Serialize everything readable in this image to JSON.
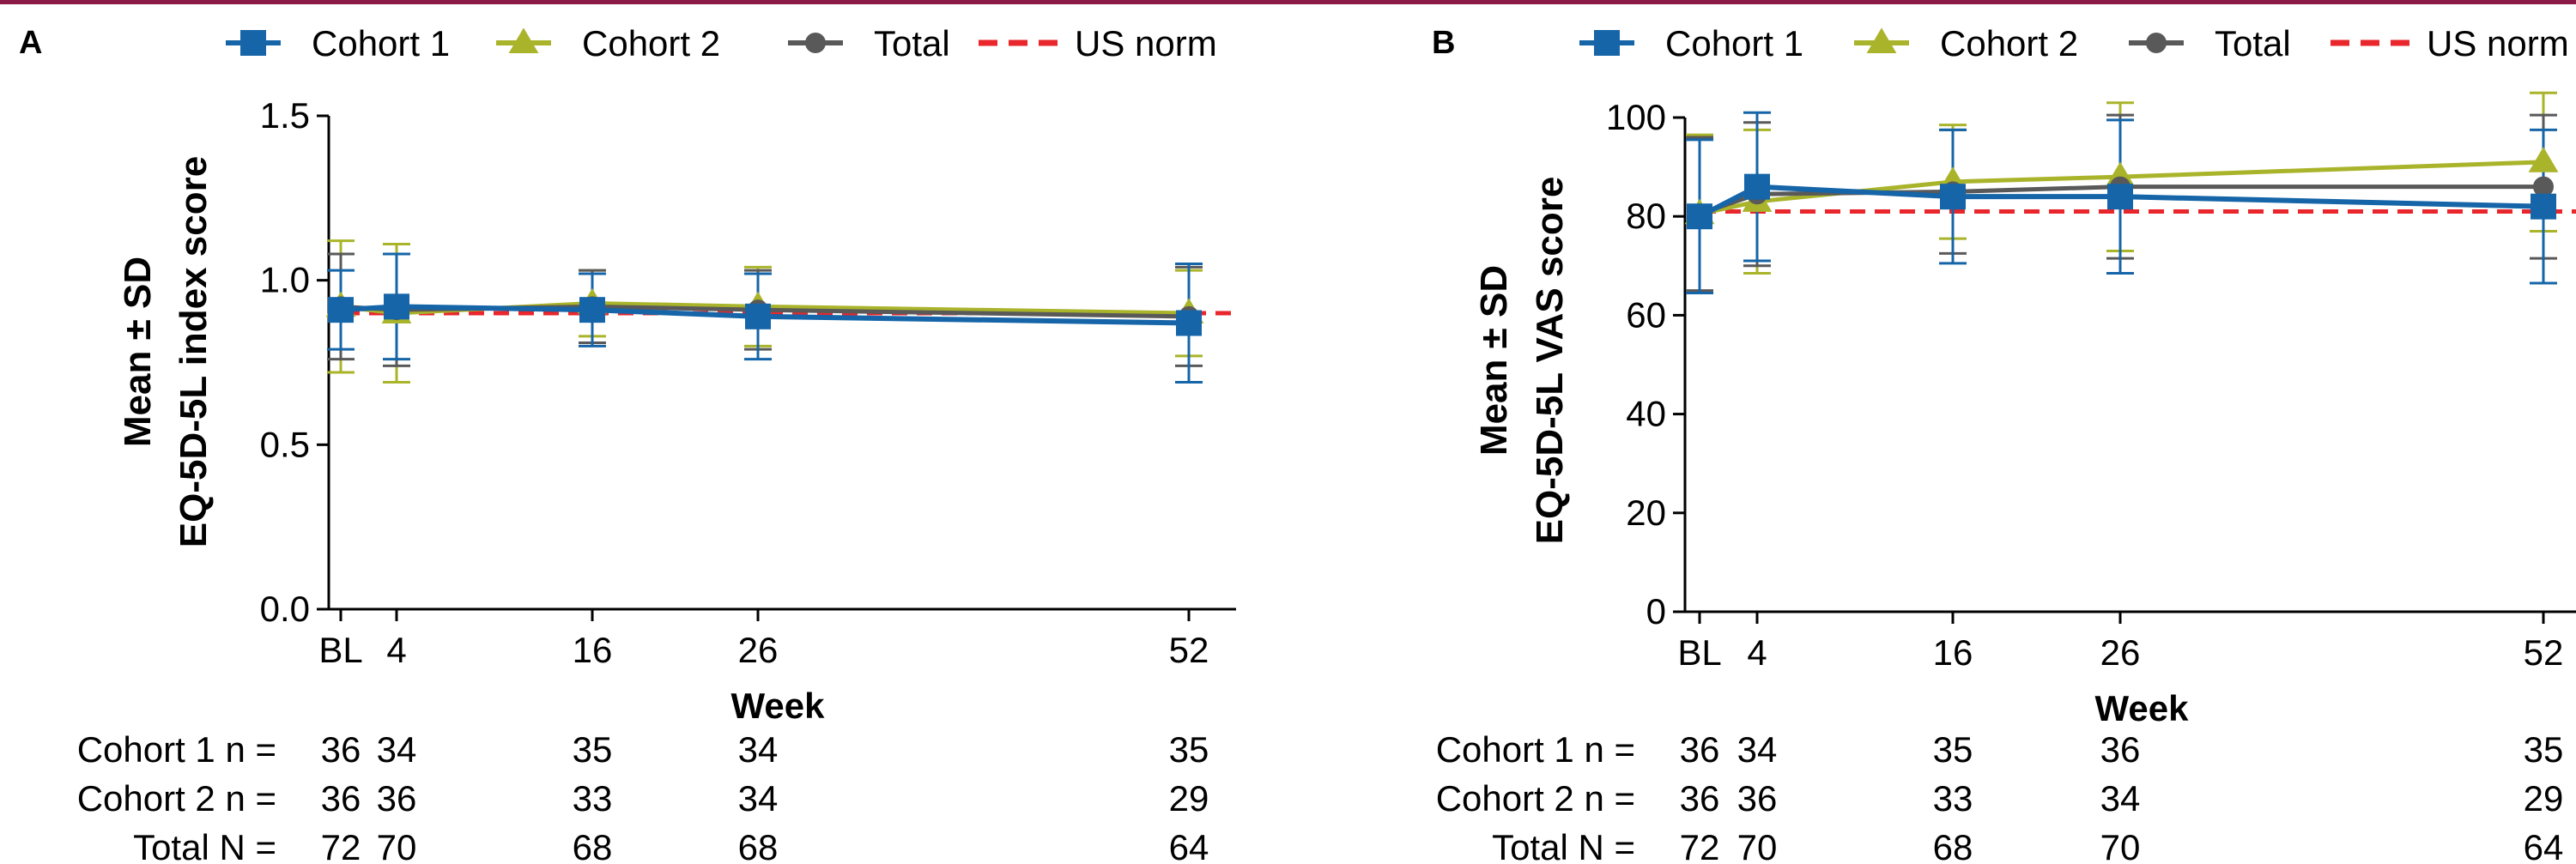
{
  "legend_items": [
    {
      "label": "Cohort 1",
      "color": "#1565a8",
      "marker": "square"
    },
    {
      "label": "Cohort 2",
      "color": "#a9b42a",
      "marker": "triangle"
    },
    {
      "label": "Total",
      "color": "#595959",
      "marker": "circle"
    },
    {
      "label": "US norm",
      "color": "#e8262b",
      "marker": "dashed-line"
    }
  ],
  "colors": {
    "cohort1": "#1565a8",
    "cohort2": "#a9b42a",
    "total": "#595959",
    "us_norm": "#e8262b"
  },
  "chart_data": [
    {
      "type": "line",
      "panel_label": "A",
      "ylabel_line1": "Mean ± SD",
      "ylabel_line2": "EQ-5D-5L index score",
      "xlabel": "Week",
      "x": [
        "BL",
        "4",
        "16",
        "26",
        "52"
      ],
      "x_weeks": [
        0,
        4,
        16,
        26,
        52
      ],
      "ylim": [
        0.0,
        1.5
      ],
      "yticks": [
        "0.0",
        "0.5",
        "1.0",
        "1.5"
      ],
      "us_norm": 0.9,
      "series": [
        {
          "name": "Cohort 2",
          "values": [
            0.92,
            0.9,
            0.93,
            0.92,
            0.9
          ],
          "sd": [
            0.2,
            0.21,
            0.1,
            0.12,
            0.13
          ]
        },
        {
          "name": "Total",
          "values": [
            0.92,
            0.91,
            0.92,
            0.91,
            0.89
          ],
          "sd": [
            0.16,
            0.17,
            0.11,
            0.12,
            0.15
          ]
        },
        {
          "name": "Cohort 1",
          "values": [
            0.91,
            0.92,
            0.91,
            0.89,
            0.87
          ],
          "sd": [
            0.12,
            0.16,
            0.11,
            0.13,
            0.18
          ]
        }
      ],
      "n_table": [
        {
          "label": "Cohort 1 n =",
          "values": [
            "36",
            "34",
            "35",
            "34",
            "35"
          ]
        },
        {
          "label": "Cohort 2 n =",
          "values": [
            "36",
            "36",
            "33",
            "34",
            "29"
          ]
        },
        {
          "label": "Total N =",
          "values": [
            "72",
            "70",
            "68",
            "68",
            "64"
          ]
        }
      ]
    },
    {
      "type": "line",
      "panel_label": "B",
      "ylabel_line1": "Mean ± SD",
      "ylabel_line2": "EQ-5D-5L VAS score",
      "xlabel": "Week",
      "x": [
        "BL",
        "4",
        "16",
        "26",
        "52"
      ],
      "x_weeks": [
        0,
        4,
        16,
        26,
        52
      ],
      "ylim": [
        0,
        100
      ],
      "yticks": [
        "0",
        "20",
        "40",
        "60",
        "80",
        "100"
      ],
      "us_norm": 81,
      "series": [
        {
          "name": "Cohort 2",
          "values": [
            80.5,
            83,
            87,
            88,
            91
          ],
          "sd": [
            16,
            14.5,
            11.5,
            15,
            14
          ]
        },
        {
          "name": "Total",
          "values": [
            80.5,
            84.5,
            85,
            86,
            86
          ],
          "sd": [
            15.5,
            14.5,
            12.5,
            14.5,
            14.5
          ]
        },
        {
          "name": "Cohort 1",
          "values": [
            80,
            86,
            84,
            84,
            82
          ],
          "sd": [
            15.5,
            15,
            13.5,
            15.5,
            15.5
          ]
        }
      ],
      "n_table": [
        {
          "label": "Cohort 1 n =",
          "values": [
            "36",
            "34",
            "35",
            "36",
            "35"
          ]
        },
        {
          "label": "Cohort 2 n =",
          "values": [
            "36",
            "36",
            "33",
            "34",
            "29"
          ]
        },
        {
          "label": "Total N =",
          "values": [
            "72",
            "70",
            "68",
            "70",
            "64"
          ]
        }
      ]
    }
  ]
}
